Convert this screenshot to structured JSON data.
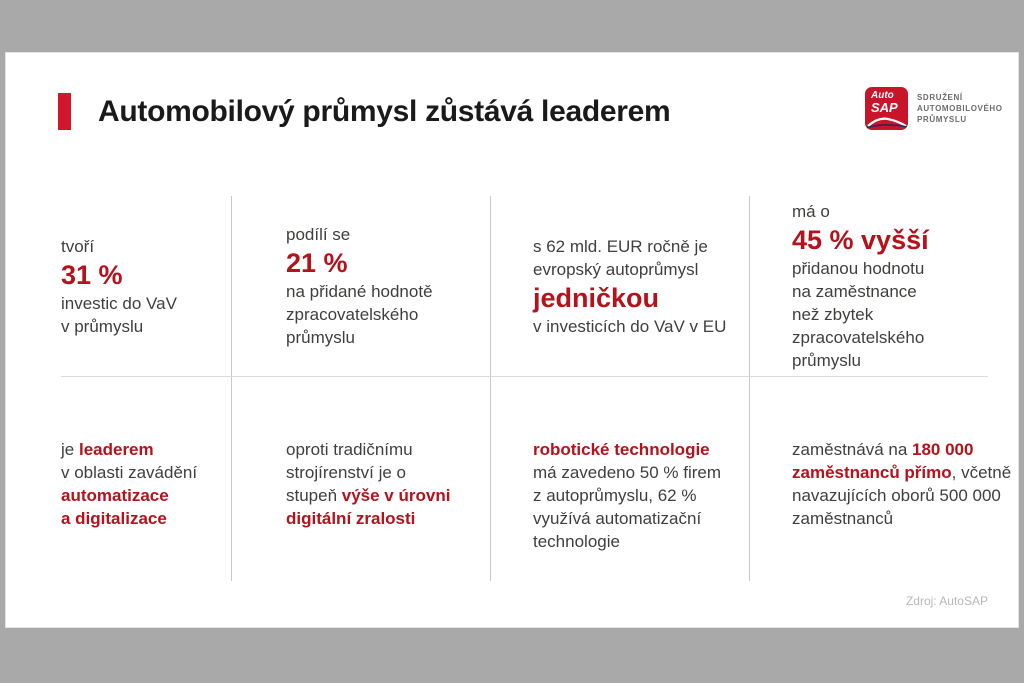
{
  "title": "Automobilový průmysl zůstává leaderem",
  "colors": {
    "accent_red": "#b5121b",
    "title_bar_red": "#d2172c",
    "brand_red": "#c9152a",
    "body_text": "#3f3f3e",
    "letterbox_gray": "#a9a9a9"
  },
  "logo": {
    "box_line1": "Auto",
    "box_line2": "SAP",
    "caption": [
      "SDRUŽENÍ",
      "AUTOMOBILOVÉHO",
      "PRŮMYSLU"
    ]
  },
  "footer": {
    "source": "Zdroj: AutoSAP"
  },
  "grid": {
    "cells": [
      {
        "id": "r1c1",
        "lines": [
          [
            {
              "t": "tvoří",
              "s": "n"
            }
          ],
          [
            {
              "t": "31 %",
              "s": "b"
            }
          ],
          [
            {
              "t": "investic do VaV",
              "s": "n"
            }
          ],
          [
            {
              "t": "v průmyslu",
              "s": "n"
            }
          ]
        ]
      },
      {
        "id": "r1c2",
        "lines": [
          [
            {
              "t": "podílí se",
              "s": "n"
            }
          ],
          [
            {
              "t": "21 %",
              "s": "b"
            }
          ],
          [
            {
              "t": "na přidané hodnotě",
              "s": "n"
            }
          ],
          [
            {
              "t": "zpracovatelského",
              "s": "n"
            }
          ],
          [
            {
              "t": "průmyslu",
              "s": "n"
            }
          ]
        ]
      },
      {
        "id": "r1c3",
        "lines": [
          [
            {
              "t": "s 62 mld. EUR ročně je",
              "s": "n"
            }
          ],
          [
            {
              "t": "evropský autoprůmysl",
              "s": "n"
            }
          ],
          [
            {
              "t": "jedničkou",
              "s": "b"
            }
          ],
          [
            {
              "t": "v investicích do VaV v EU",
              "s": "n"
            }
          ]
        ]
      },
      {
        "id": "r1c4",
        "lines": [
          [
            {
              "t": "má o",
              "s": "n"
            }
          ],
          [
            {
              "t": "45 % vyšší",
              "s": "b"
            }
          ],
          [
            {
              "t": "přidanou hodnotu",
              "s": "n"
            }
          ],
          [
            {
              "t": "na zaměstnance",
              "s": "n"
            }
          ],
          [
            {
              "t": "než zbytek",
              "s": "n"
            }
          ],
          [
            {
              "t": "zpracovatelského",
              "s": "n"
            }
          ],
          [
            {
              "t": "průmyslu",
              "s": "n"
            }
          ]
        ]
      },
      {
        "id": "r2c1",
        "lines": [
          [
            {
              "t": "je ",
              "s": "n"
            },
            {
              "t": "leaderem",
              "s": "r"
            }
          ],
          [
            {
              "t": "v oblasti zavádění",
              "s": "n"
            }
          ],
          [
            {
              "t": "automatizace",
              "s": "r"
            }
          ],
          [
            {
              "t": "a digitalizace",
              "s": "r"
            }
          ]
        ]
      },
      {
        "id": "r2c2",
        "lines": [
          [
            {
              "t": "oproti tradičnímu",
              "s": "n"
            }
          ],
          [
            {
              "t": "strojírenství je o",
              "s": "n"
            }
          ],
          [
            {
              "t": "stupeň ",
              "s": "n"
            },
            {
              "t": "výše v úrovni",
              "s": "r"
            }
          ],
          [
            {
              "t": "digitální zralosti",
              "s": "r"
            }
          ]
        ]
      },
      {
        "id": "r2c3",
        "lines": [
          [
            {
              "t": "robotické technologie",
              "s": "r"
            }
          ],
          [
            {
              "t": "má zavedeno 50 % firem",
              "s": "n"
            }
          ],
          [
            {
              "t": "z autoprůmyslu, 62 %",
              "s": "n"
            }
          ],
          [
            {
              "t": "využívá automatizační",
              "s": "n"
            }
          ],
          [
            {
              "t": "technologie",
              "s": "n"
            }
          ]
        ]
      },
      {
        "id": "r2c4",
        "lines": [
          [
            {
              "t": "zaměstnává na ",
              "s": "n"
            },
            {
              "t": "180 000",
              "s": "r"
            }
          ],
          [
            {
              "t": "zaměstnanců přímo",
              "s": "r"
            },
            {
              "t": ", včetně",
              "s": "n"
            }
          ],
          [
            {
              "t": "navazujících oborů 500 000",
              "s": "n"
            }
          ],
          [
            {
              "t": "zaměstnanců",
              "s": "n"
            }
          ]
        ]
      }
    ]
  }
}
